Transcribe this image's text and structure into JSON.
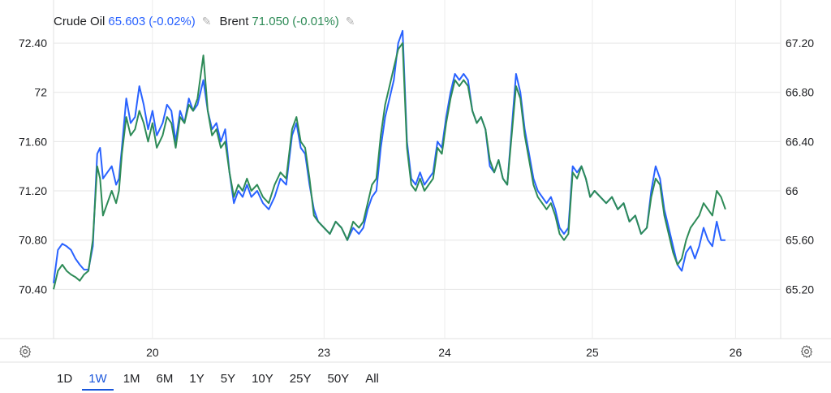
{
  "legend": [
    {
      "name": "Crude Oil",
      "value": "65.603",
      "change": "(-0.02%)",
      "color": "#2962ff"
    },
    {
      "name": "Brent",
      "value": "71.050",
      "change": "(-0.01%)",
      "color": "#2e8b57"
    }
  ],
  "range_buttons": [
    "1D",
    "1W",
    "1M",
    "6M",
    "1Y",
    "5Y",
    "10Y",
    "25Y",
    "50Y",
    "All"
  ],
  "active_range": "1W",
  "chart_data": {
    "type": "line",
    "x_ticks": [
      "20",
      "23",
      "24",
      "25",
      "26"
    ],
    "left_axis": {
      "ticks": [
        "70.40",
        "70.80",
        "71.20",
        "71.60",
        "72",
        "72.40"
      ],
      "ylim": [
        70.0,
        72.75
      ]
    },
    "right_axis": {
      "ticks": [
        "65.20",
        "65.60",
        "66",
        "66.40",
        "66.80",
        "67.20"
      ],
      "ylim": [
        64.8,
        67.55
      ]
    },
    "grid": true,
    "series": [
      {
        "name": "Crude Oil",
        "axis": "right",
        "color": "#2962ff",
        "points": [
          [
            0.0,
            65.25
          ],
          [
            0.006,
            65.52
          ],
          [
            0.012,
            65.57
          ],
          [
            0.018,
            65.55
          ],
          [
            0.024,
            65.52
          ],
          [
            0.03,
            65.45
          ],
          [
            0.036,
            65.4
          ],
          [
            0.042,
            65.36
          ],
          [
            0.048,
            65.36
          ],
          [
            0.054,
            65.55
          ],
          [
            0.06,
            66.3
          ],
          [
            0.064,
            66.35
          ],
          [
            0.068,
            66.1
          ],
          [
            0.074,
            66.15
          ],
          [
            0.08,
            66.2
          ],
          [
            0.086,
            66.05
          ],
          [
            0.09,
            66.1
          ],
          [
            0.094,
            66.35
          ],
          [
            0.1,
            66.75
          ],
          [
            0.106,
            66.55
          ],
          [
            0.112,
            66.6
          ],
          [
            0.118,
            66.85
          ],
          [
            0.124,
            66.7
          ],
          [
            0.13,
            66.5
          ],
          [
            0.136,
            66.65
          ],
          [
            0.142,
            66.45
          ],
          [
            0.15,
            66.55
          ],
          [
            0.156,
            66.7
          ],
          [
            0.162,
            66.65
          ],
          [
            0.168,
            66.4
          ],
          [
            0.174,
            66.65
          ],
          [
            0.18,
            66.55
          ],
          [
            0.186,
            66.75
          ],
          [
            0.192,
            66.65
          ],
          [
            0.198,
            66.7
          ],
          [
            0.206,
            66.9
          ],
          [
            0.212,
            66.65
          ],
          [
            0.218,
            66.5
          ],
          [
            0.224,
            66.55
          ],
          [
            0.23,
            66.4
          ],
          [
            0.236,
            66.5
          ],
          [
            0.242,
            66.15
          ],
          [
            0.248,
            65.9
          ],
          [
            0.254,
            66.0
          ],
          [
            0.26,
            65.95
          ],
          [
            0.266,
            66.05
          ],
          [
            0.272,
            65.95
          ],
          [
            0.28,
            66.0
          ],
          [
            0.288,
            65.9
          ],
          [
            0.296,
            65.85
          ],
          [
            0.304,
            65.95
          ],
          [
            0.312,
            66.1
          ],
          [
            0.32,
            66.05
          ],
          [
            0.328,
            66.45
          ],
          [
            0.334,
            66.55
          ],
          [
            0.34,
            66.35
          ],
          [
            0.346,
            66.3
          ],
          [
            0.352,
            66.05
          ],
          [
            0.358,
            65.85
          ],
          [
            0.364,
            65.75
          ],
          [
            0.372,
            65.7
          ],
          [
            0.38,
            65.65
          ],
          [
            0.388,
            65.75
          ],
          [
            0.396,
            65.7
          ],
          [
            0.404,
            65.6
          ],
          [
            0.412,
            65.7
          ],
          [
            0.42,
            65.65
          ],
          [
            0.426,
            65.7
          ],
          [
            0.432,
            65.85
          ],
          [
            0.438,
            65.95
          ],
          [
            0.444,
            66.0
          ],
          [
            0.45,
            66.35
          ],
          [
            0.456,
            66.6
          ],
          [
            0.462,
            66.75
          ],
          [
            0.468,
            66.9
          ],
          [
            0.474,
            67.2
          ],
          [
            0.48,
            67.3
          ],
          [
            0.486,
            66.4
          ],
          [
            0.492,
            66.1
          ],
          [
            0.498,
            66.05
          ],
          [
            0.504,
            66.15
          ],
          [
            0.51,
            66.05
          ],
          [
            0.516,
            66.1
          ],
          [
            0.522,
            66.15
          ],
          [
            0.528,
            66.4
          ],
          [
            0.534,
            66.35
          ],
          [
            0.54,
            66.6
          ],
          [
            0.546,
            66.8
          ],
          [
            0.552,
            66.95
          ],
          [
            0.558,
            66.9
          ],
          [
            0.564,
            66.95
          ],
          [
            0.57,
            66.9
          ],
          [
            0.576,
            66.65
          ],
          [
            0.582,
            66.55
          ],
          [
            0.588,
            66.6
          ],
          [
            0.594,
            66.5
          ],
          [
            0.6,
            66.2
          ],
          [
            0.606,
            66.15
          ],
          [
            0.612,
            66.25
          ],
          [
            0.618,
            66.1
          ],
          [
            0.624,
            66.05
          ],
          [
            0.63,
            66.5
          ],
          [
            0.636,
            66.95
          ],
          [
            0.642,
            66.8
          ],
          [
            0.648,
            66.5
          ],
          [
            0.654,
            66.3
          ],
          [
            0.66,
            66.1
          ],
          [
            0.666,
            66.0
          ],
          [
            0.672,
            65.95
          ],
          [
            0.678,
            65.9
          ],
          [
            0.684,
            65.95
          ],
          [
            0.69,
            65.85
          ],
          [
            0.696,
            65.7
          ],
          [
            0.702,
            65.65
          ],
          [
            0.708,
            65.7
          ],
          [
            0.714,
            66.2
          ],
          [
            0.72,
            66.15
          ],
          [
            0.726,
            66.2
          ],
          [
            0.732,
            66.1
          ],
          [
            0.738,
            65.95
          ],
          [
            0.744,
            66.0
          ],
          [
            0.752,
            65.95
          ],
          [
            0.76,
            65.9
          ],
          [
            0.768,
            65.95
          ],
          [
            0.776,
            65.85
          ],
          [
            0.784,
            65.9
          ],
          [
            0.792,
            65.75
          ],
          [
            0.8,
            65.8
          ],
          [
            0.808,
            65.65
          ],
          [
            0.816,
            65.7
          ],
          [
            0.822,
            66.0
          ],
          [
            0.828,
            66.2
          ],
          [
            0.834,
            66.1
          ],
          [
            0.84,
            65.85
          ],
          [
            0.846,
            65.7
          ],
          [
            0.852,
            65.55
          ],
          [
            0.858,
            65.4
          ],
          [
            0.864,
            65.35
          ],
          [
            0.87,
            65.5
          ],
          [
            0.876,
            65.55
          ],
          [
            0.882,
            65.45
          ],
          [
            0.888,
            65.55
          ],
          [
            0.894,
            65.7
          ],
          [
            0.9,
            65.6
          ],
          [
            0.906,
            65.55
          ],
          [
            0.912,
            65.75
          ],
          [
            0.918,
            65.6
          ],
          [
            0.924,
            65.6
          ]
        ]
      },
      {
        "name": "Brent",
        "axis": "left",
        "color": "#2e8b57",
        "points": [
          [
            0.0,
            70.4
          ],
          [
            0.006,
            70.55
          ],
          [
            0.012,
            70.6
          ],
          [
            0.018,
            70.55
          ],
          [
            0.024,
            70.52
          ],
          [
            0.03,
            70.5
          ],
          [
            0.036,
            70.47
          ],
          [
            0.042,
            70.52
          ],
          [
            0.048,
            70.55
          ],
          [
            0.054,
            70.8
          ],
          [
            0.06,
            71.4
          ],
          [
            0.064,
            71.3
          ],
          [
            0.068,
            71.0
          ],
          [
            0.074,
            71.1
          ],
          [
            0.08,
            71.2
          ],
          [
            0.086,
            71.1
          ],
          [
            0.09,
            71.2
          ],
          [
            0.094,
            71.5
          ],
          [
            0.1,
            71.8
          ],
          [
            0.106,
            71.65
          ],
          [
            0.112,
            71.7
          ],
          [
            0.118,
            71.85
          ],
          [
            0.124,
            71.75
          ],
          [
            0.13,
            71.6
          ],
          [
            0.136,
            71.75
          ],
          [
            0.142,
            71.55
          ],
          [
            0.15,
            71.65
          ],
          [
            0.156,
            71.8
          ],
          [
            0.162,
            71.75
          ],
          [
            0.168,
            71.55
          ],
          [
            0.174,
            71.8
          ],
          [
            0.18,
            71.75
          ],
          [
            0.186,
            71.9
          ],
          [
            0.192,
            71.85
          ],
          [
            0.198,
            71.95
          ],
          [
            0.206,
            72.3
          ],
          [
            0.212,
            71.85
          ],
          [
            0.218,
            71.65
          ],
          [
            0.224,
            71.7
          ],
          [
            0.23,
            71.55
          ],
          [
            0.236,
            71.6
          ],
          [
            0.242,
            71.35
          ],
          [
            0.248,
            71.15
          ],
          [
            0.254,
            71.25
          ],
          [
            0.26,
            71.2
          ],
          [
            0.266,
            71.3
          ],
          [
            0.272,
            71.2
          ],
          [
            0.28,
            71.25
          ],
          [
            0.288,
            71.15
          ],
          [
            0.296,
            71.1
          ],
          [
            0.304,
            71.25
          ],
          [
            0.312,
            71.35
          ],
          [
            0.32,
            71.3
          ],
          [
            0.328,
            71.7
          ],
          [
            0.334,
            71.8
          ],
          [
            0.34,
            71.6
          ],
          [
            0.346,
            71.55
          ],
          [
            0.352,
            71.3
          ],
          [
            0.358,
            71.0
          ],
          [
            0.364,
            70.95
          ],
          [
            0.372,
            70.9
          ],
          [
            0.38,
            70.85
          ],
          [
            0.388,
            70.95
          ],
          [
            0.396,
            70.9
          ],
          [
            0.404,
            70.8
          ],
          [
            0.412,
            70.95
          ],
          [
            0.42,
            70.9
          ],
          [
            0.426,
            70.95
          ],
          [
            0.432,
            71.1
          ],
          [
            0.438,
            71.25
          ],
          [
            0.444,
            71.3
          ],
          [
            0.45,
            71.65
          ],
          [
            0.456,
            71.9
          ],
          [
            0.462,
            72.05
          ],
          [
            0.468,
            72.2
          ],
          [
            0.474,
            72.35
          ],
          [
            0.48,
            72.4
          ],
          [
            0.486,
            71.55
          ],
          [
            0.492,
            71.25
          ],
          [
            0.498,
            71.2
          ],
          [
            0.504,
            71.3
          ],
          [
            0.51,
            71.2
          ],
          [
            0.516,
            71.25
          ],
          [
            0.522,
            71.3
          ],
          [
            0.528,
            71.55
          ],
          [
            0.534,
            71.5
          ],
          [
            0.54,
            71.75
          ],
          [
            0.546,
            71.95
          ],
          [
            0.552,
            72.1
          ],
          [
            0.558,
            72.05
          ],
          [
            0.564,
            72.1
          ],
          [
            0.57,
            72.05
          ],
          [
            0.576,
            71.85
          ],
          [
            0.582,
            71.75
          ],
          [
            0.588,
            71.8
          ],
          [
            0.594,
            71.7
          ],
          [
            0.6,
            71.45
          ],
          [
            0.606,
            71.35
          ],
          [
            0.612,
            71.45
          ],
          [
            0.618,
            71.3
          ],
          [
            0.624,
            71.25
          ],
          [
            0.63,
            71.65
          ],
          [
            0.636,
            72.05
          ],
          [
            0.642,
            71.95
          ],
          [
            0.648,
            71.65
          ],
          [
            0.654,
            71.45
          ],
          [
            0.66,
            71.25
          ],
          [
            0.666,
            71.15
          ],
          [
            0.672,
            71.1
          ],
          [
            0.678,
            71.05
          ],
          [
            0.684,
            71.1
          ],
          [
            0.69,
            71.0
          ],
          [
            0.696,
            70.85
          ],
          [
            0.702,
            70.8
          ],
          [
            0.708,
            70.85
          ],
          [
            0.714,
            71.35
          ],
          [
            0.72,
            71.3
          ],
          [
            0.726,
            71.4
          ],
          [
            0.732,
            71.3
          ],
          [
            0.738,
            71.15
          ],
          [
            0.744,
            71.2
          ],
          [
            0.752,
            71.15
          ],
          [
            0.76,
            71.1
          ],
          [
            0.768,
            71.15
          ],
          [
            0.776,
            71.05
          ],
          [
            0.784,
            71.1
          ],
          [
            0.792,
            70.95
          ],
          [
            0.8,
            71.0
          ],
          [
            0.808,
            70.85
          ],
          [
            0.816,
            70.9
          ],
          [
            0.822,
            71.15
          ],
          [
            0.828,
            71.3
          ],
          [
            0.834,
            71.25
          ],
          [
            0.84,
            71.0
          ],
          [
            0.846,
            70.85
          ],
          [
            0.852,
            70.7
          ],
          [
            0.858,
            70.6
          ],
          [
            0.864,
            70.65
          ],
          [
            0.87,
            70.8
          ],
          [
            0.876,
            70.9
          ],
          [
            0.882,
            70.95
          ],
          [
            0.888,
            71.0
          ],
          [
            0.894,
            71.1
          ],
          [
            0.9,
            71.05
          ],
          [
            0.906,
            71.0
          ],
          [
            0.912,
            71.2
          ],
          [
            0.918,
            71.15
          ],
          [
            0.924,
            71.05
          ]
        ]
      }
    ]
  }
}
